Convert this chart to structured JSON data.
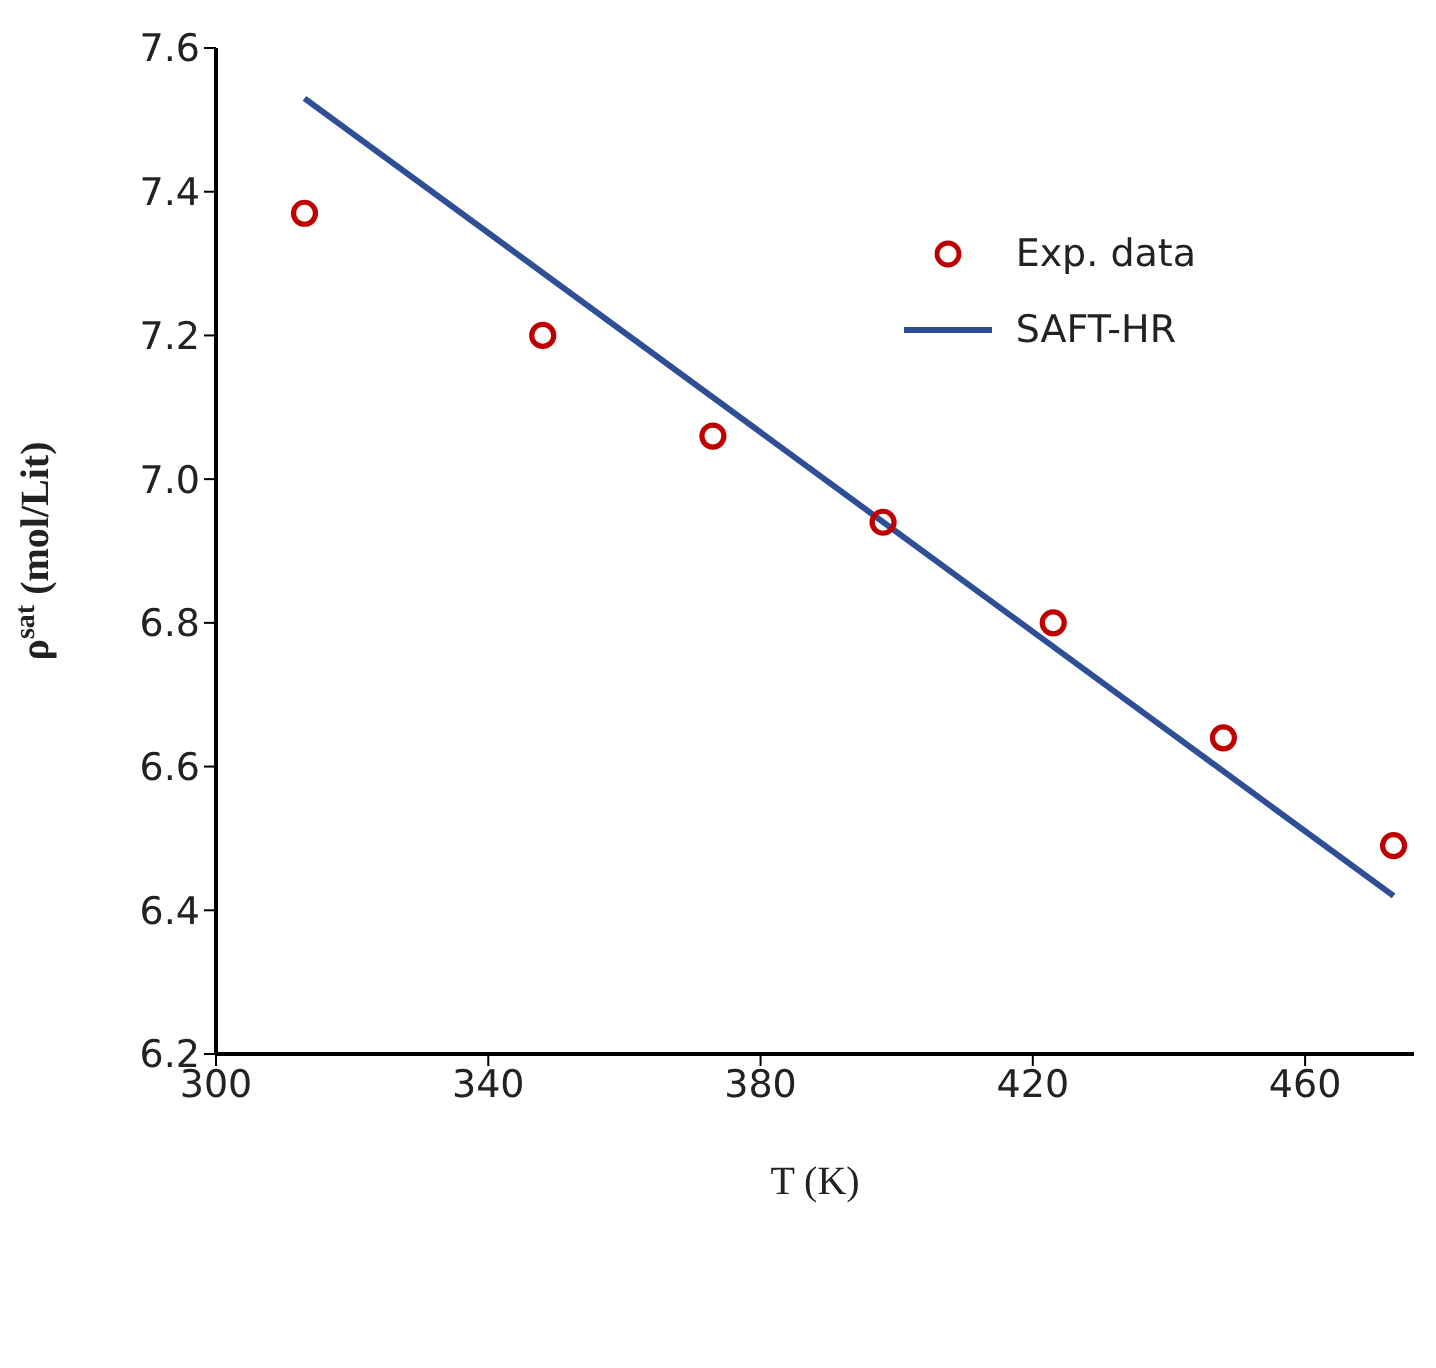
{
  "chart_data": {
    "type": "scatter",
    "xlabel": "T (K)",
    "ylabel": "ρ$^{sat}$ (mol/Lit)",
    "xlim": [
      300,
      476
    ],
    "xticks": [
      300,
      340,
      380,
      420,
      460
    ],
    "ylim": [
      6.2,
      7.6
    ],
    "yticks": [
      6.2,
      6.4,
      6.6,
      6.8,
      {
        "value": 7,
        "label": "7.0"
      },
      7.2,
      7.4,
      7.6
    ],
    "grid": false,
    "legend": "top right",
    "series": [
      {
        "name": "Exp. data",
        "marker": "circle",
        "color": "#c00000",
        "x": [
          313,
          348,
          373,
          398,
          423,
          448,
          473
        ],
        "values": [
          7.37,
          7.2,
          7.06,
          6.94,
          6.8,
          6.64,
          6.49
        ]
      },
      {
        "name": "SAFT-HR",
        "type": "line",
        "marker": "none",
        "color": "#2e4f96",
        "x": [
          313,
          473
        ],
        "values": [
          7.53,
          6.42
        ]
      }
    ]
  }
}
